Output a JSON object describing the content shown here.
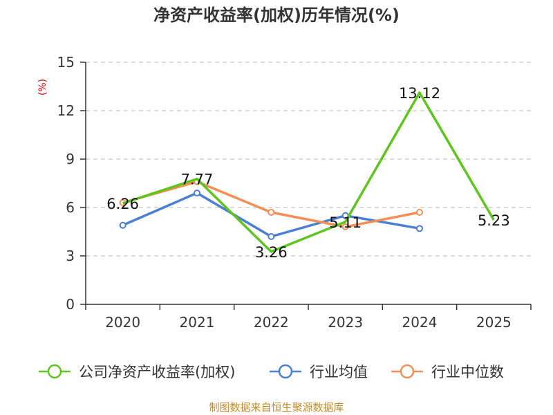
{
  "chart_data": {
    "type": "line",
    "title": "净资产收益率(加权)历年情况(%)",
    "ylabel": "(%)",
    "xlabel": "",
    "categories": [
      "2020",
      "2021",
      "2022",
      "2023",
      "2024",
      "2025"
    ],
    "ylim": [
      0,
      15
    ],
    "yticks": [
      0,
      3,
      6,
      9,
      12,
      15
    ],
    "grid": true,
    "series": [
      {
        "name": "公司净资产收益率(加权)",
        "color": "#5ec41e",
        "values": [
          6.26,
          7.77,
          3.26,
          5.11,
          13.12,
          5.23
        ],
        "labels": [
          "6.26",
          "7.77",
          "3.26",
          "5.11",
          "13.12",
          "5.23"
        ],
        "show_markers": false
      },
      {
        "name": "行业均值",
        "color": "#4a7fd6",
        "values": [
          4.9,
          6.9,
          4.2,
          5.5,
          4.7,
          null
        ],
        "show_markers": true
      },
      {
        "name": "行业中位数",
        "color": "#f58e55",
        "values": [
          6.3,
          7.6,
          5.7,
          4.8,
          5.7,
          null
        ],
        "show_markers": true
      }
    ],
    "legend_position": "bottom",
    "source": "制图数据来自恒生聚源数据库"
  }
}
